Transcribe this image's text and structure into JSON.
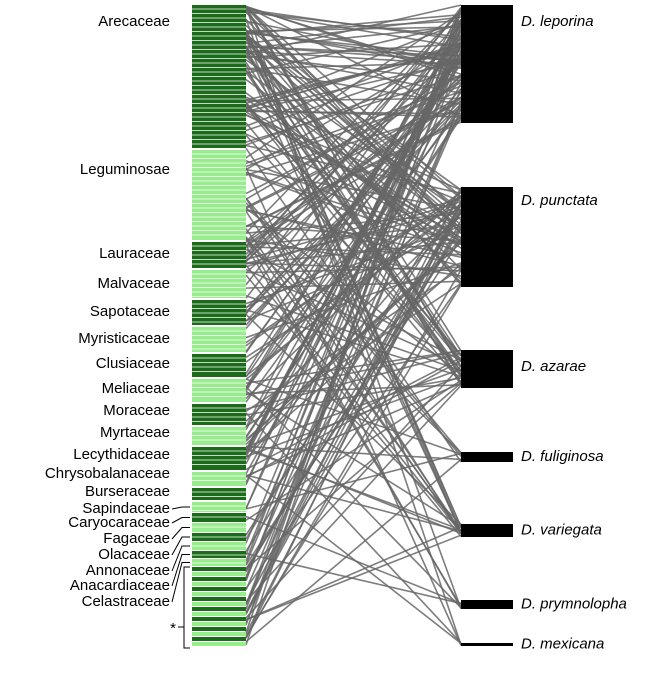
{
  "plant_families": [
    "Arecaceae",
    "Leguminosae",
    "Lauraceae",
    "Malvaceae",
    "Sapotaceae",
    "Myristicaceae",
    "Clusiaceae",
    "Meliaceae",
    "Moraceae",
    "Myrtaceae",
    "Lecythidaceae",
    "Chrysobalanaceae",
    "Burseraceae",
    "Sapindaceae",
    "Caryocaraceae",
    "Fagaceae",
    "Olacaceae",
    "Annonaceae",
    "Anacardiaceae",
    "Celastraceae"
  ],
  "other_families_marker": "*",
  "species": [
    "D. leporina",
    "D. punctata",
    "D. azarae",
    "D. fuliginosa",
    "D. variegata",
    "D. prymnolopha",
    "D. mexicana"
  ]
}
